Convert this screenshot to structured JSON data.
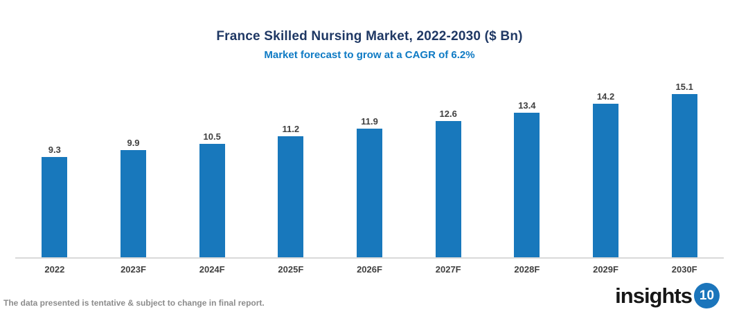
{
  "header": {
    "title": "France Skilled Nursing Market, 2022-2030 ($ Bn)",
    "subtitle": "Market forecast to grow at a CAGR of 6.2%"
  },
  "chart_data": {
    "type": "bar",
    "categories": [
      "2022",
      "2023F",
      "2024F",
      "2025F",
      "2026F",
      "2027F",
      "2028F",
      "2029F",
      "2030F"
    ],
    "values": [
      9.3,
      9.9,
      10.5,
      11.2,
      11.9,
      12.6,
      13.4,
      14.2,
      15.1
    ],
    "title": "France Skilled Nursing Market, 2022-2030 ($ Bn)",
    "subtitle": "Market forecast to grow at a CAGR of 6.2%",
    "xlabel": "",
    "ylabel": "",
    "ylim": [
      0,
      16
    ],
    "grid": false,
    "legend": false,
    "bar_color": "#1878BC",
    "value_label_color": "#404040"
  },
  "footer": {
    "disclaimer": "The data presented is tentative & subject to change in final report.",
    "logo": {
      "text": "insights",
      "badge": "10",
      "badge_color": "#1B75BB"
    }
  },
  "colors": {
    "title": "#1F3864",
    "subtitle": "#0E7AC4",
    "bar": "#1878BC",
    "axis_line": "#D9D9D9",
    "labels": "#404040",
    "footer_text": "#8C8C8C"
  }
}
